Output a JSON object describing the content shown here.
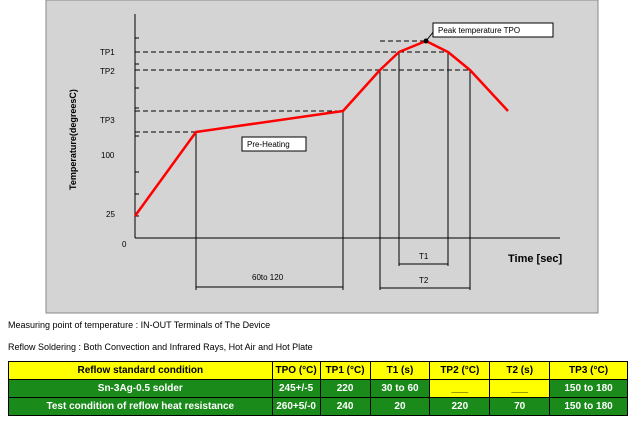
{
  "diagram": {
    "temp_ticks": [
      {
        "label": "TP1",
        "pos": 0.87
      },
      {
        "label": "TP2",
        "pos": 0.8
      },
      {
        "label": "TP3",
        "pos": 0.58
      },
      {
        "label": "100",
        "pos": 0.42
      },
      {
        "label": "25",
        "pos": 0.14
      },
      {
        "label": "0",
        "pos": 0.0
      }
    ],
    "y_axis_label": "Temperature(degreesC)",
    "x_axis_label": "Time [sec]",
    "preheat_label": "Pre-Heating",
    "peak_label": "Peak temperature TPO",
    "span_preheat": "60to 120",
    "span_t1": "T1",
    "span_t2": "T2"
  },
  "notes": {
    "measuring_point": "Measuring point of temperature : IN-OUT Terminals of The Device",
    "reflow_method": "Reflow Soldering : Both Convection and Infrared Rays, Hot Air and Hot Plate"
  },
  "table": {
    "headers": [
      "Reflow standard condition",
      "TPO (°C)",
      "TP1 (°C)",
      "T1 (s)",
      "TP2 (°C)",
      "T2 (s)",
      "TP3 (°C)"
    ],
    "rows": [
      [
        "Sn-3Ag-0.5 solder",
        "245+/-5",
        "220",
        "30 to 60",
        "___",
        "___",
        "150 to 180"
      ],
      [
        "Test condition of reflow heat resistance",
        "260+5/-0",
        "240",
        "20",
        "220",
        "70",
        "150 to 180"
      ]
    ]
  },
  "colors": {
    "plot_bg": "#d4d4d4",
    "curve": "#ff0000",
    "header_bg": "#ffff00",
    "row_dark": "#1a8a1a",
    "row_light": "#2ecc2e"
  }
}
